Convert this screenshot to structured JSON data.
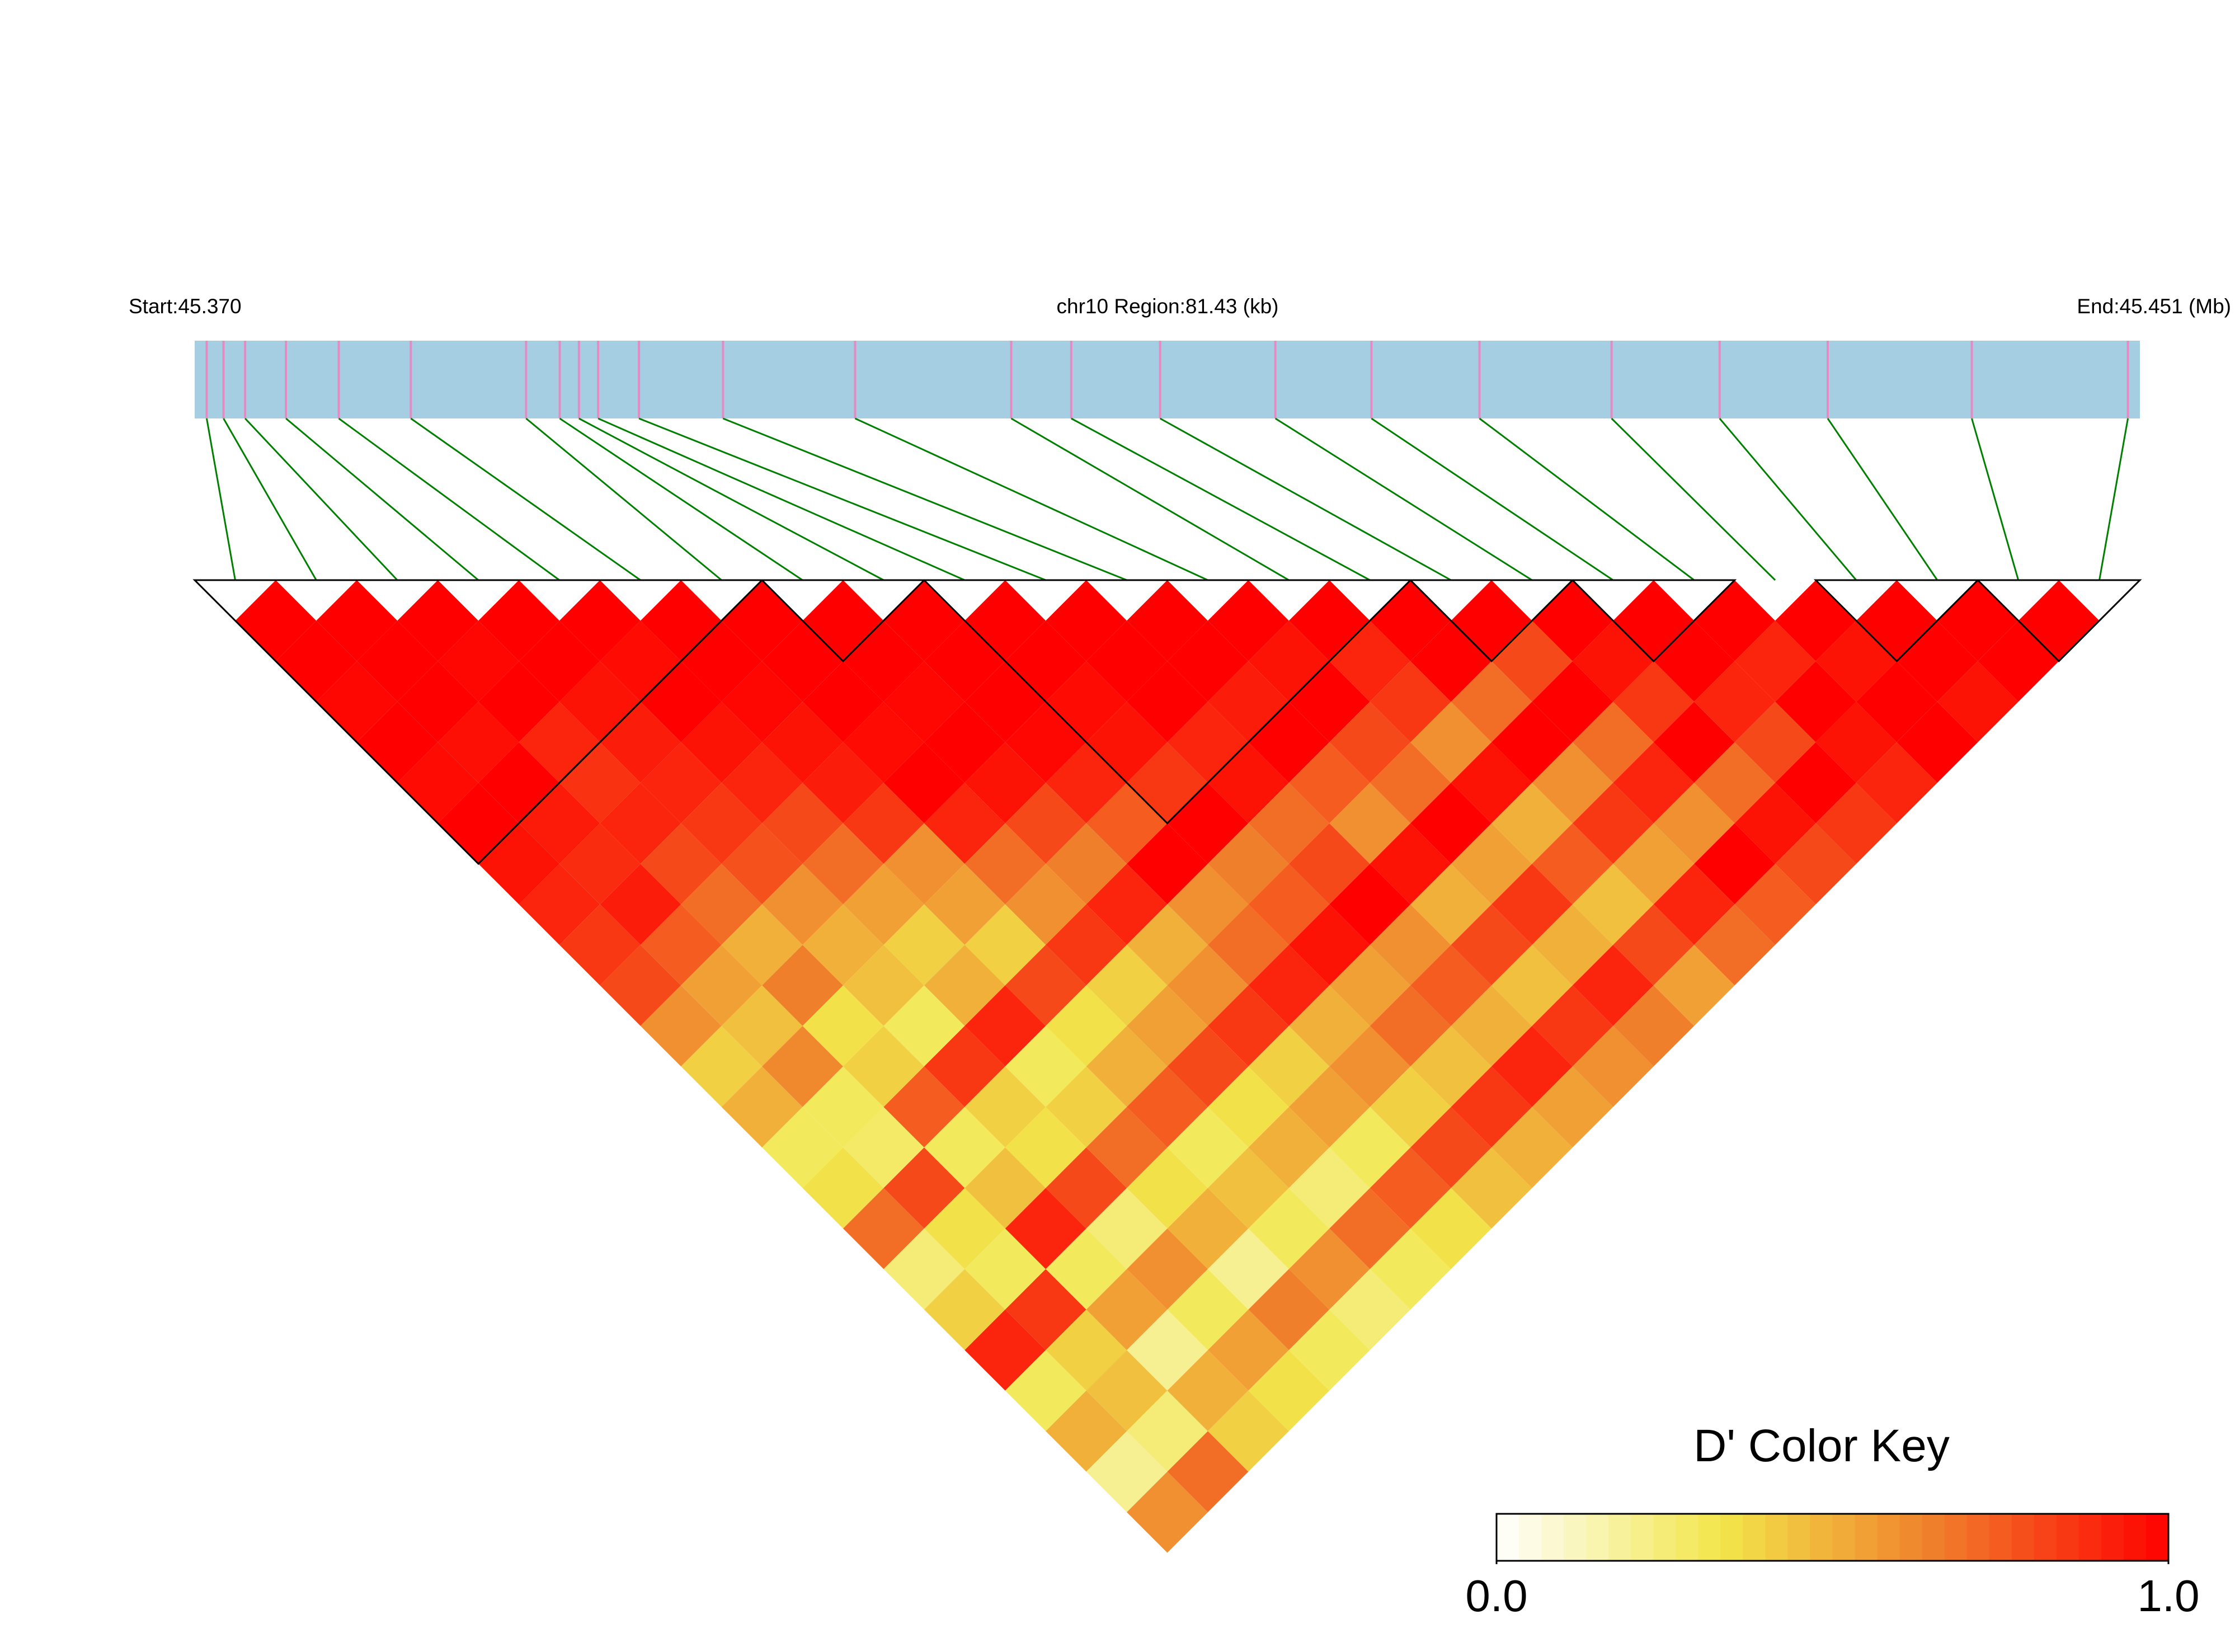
{
  "chart_data": {
    "type": "ld-heatmap",
    "chromosome_label": "chr10 Region:81.43 (kb)",
    "start_label": "Start:45.370",
    "end_label": "End:45.451 (Mb)",
    "xlim": [
      45.37,
      45.451
    ],
    "positions": [
      45.3705,
      45.3712,
      45.3721,
      45.3738,
      45.376,
      45.379,
      45.3838,
      45.3852,
      45.386,
      45.3868,
      45.3885,
      45.392,
      45.3975,
      45.404,
      45.4065,
      45.4102,
      45.415,
      45.419,
      45.4235,
      45.429,
      45.4335,
      45.438,
      45.444,
      45.4505
    ],
    "ld": [
      [
        1,
        1,
        0.98,
        1,
        0.97,
        1,
        0.95,
        0.9,
        0.85,
        0.8,
        0.6,
        0.4,
        0.5,
        0.3,
        0.35,
        0.7,
        0.25,
        0.4,
        0.9,
        0.3,
        0.5,
        0.2,
        0.6
      ],
      [
        1,
        1,
        1,
        0.96,
        1,
        0.93,
        0.88,
        0.92,
        0.75,
        0.55,
        0.45,
        0.62,
        0.3,
        0.28,
        0.8,
        0.35,
        0.3,
        0.85,
        0.4,
        0.45,
        0.25,
        0.7
      ],
      [
        1,
        0.98,
        1,
        0.9,
        0.86,
        0.9,
        0.8,
        0.7,
        0.5,
        0.65,
        0.35,
        0.4,
        0.75,
        0.3,
        0.45,
        0.9,
        0.3,
        0.55,
        0.2,
        0.5,
        0.4
      ],
      [
        1,
        1,
        0.95,
        0.92,
        0.9,
        0.85,
        0.78,
        0.6,
        0.5,
        0.45,
        0.3,
        0.85,
        0.4,
        0.35,
        0.8,
        0.25,
        0.6,
        0.3,
        0.55,
        0.35
      ],
      [
        1,
        0.97,
        1,
        0.95,
        0.9,
        0.8,
        0.7,
        0.55,
        0.4,
        0.5,
        0.9,
        0.3,
        0.4,
        0.7,
        0.35,
        0.5,
        0.2,
        0.65,
        0.3
      ],
      [
        1,
        1,
        0.98,
        0.95,
        0.92,
        0.85,
        0.6,
        0.55,
        0.4,
        0.8,
        0.35,
        0.5,
        0.75,
        0.3,
        0.45,
        0.3,
        0.6,
        0.25
      ],
      [
        1,
        1,
        1,
        0.97,
        1,
        0.9,
        0.7,
        0.6,
        0.85,
        0.4,
        0.55,
        0.8,
        0.35,
        0.5,
        0.25,
        0.7,
        0.3
      ],
      [
        1,
        1,
        0.98,
        1,
        0.95,
        0.8,
        0.65,
        0.9,
        0.5,
        0.6,
        0.85,
        0.4,
        0.55,
        0.3,
        0.75,
        0.35
      ],
      [
        1,
        1,
        1,
        0.98,
        0.9,
        0.75,
        1,
        0.6,
        0.7,
        0.9,
        0.5,
        0.6,
        0.4,
        0.8,
        0.45
      ],
      [
        1,
        1,
        0.97,
        0.95,
        0.85,
        1,
        0.65,
        0.75,
        0.95,
        0.55,
        0.7,
        0.45,
        0.85,
        0.5
      ],
      [
        1,
        1,
        1,
        0.9,
        0.95,
        0.7,
        0.8,
        1,
        0.6,
        0.75,
        0.5,
        0.9,
        0.55
      ],
      [
        1,
        1,
        0.92,
        1,
        0.75,
        0.6,
        0.95,
        0.5,
        0.8,
        0.45,
        0.85,
        0.6
      ],
      [
        1,
        0.95,
        1,
        0.8,
        0.7,
        1,
        0.55,
        0.85,
        0.5,
        0.9,
        0.65
      ],
      [
        1,
        0.9,
        0.85,
        0.6,
        0.95,
        0.5,
        0.75,
        0.45,
        0.8,
        0.55
      ],
      [
        1,
        1,
        0.7,
        1,
        0.6,
        0.85,
        0.55,
        0.9,
        0.7
      ],
      [
        1,
        0.8,
        1,
        0.7,
        0.9,
        0.6,
        1,
        0.75
      ],
      [
        1,
        0.95,
        0.85,
        1,
        0.7,
        0.95,
        0.8
      ],
      [
        1,
        1,
        0.9,
        0.8,
        1,
        0.85
      ],
      [
        1,
        0.9,
        1,
        0.95,
        0.9
      ],
      [
        1,
        0.95,
        1,
        1
      ],
      [
        1,
        1,
        0.95
      ],
      [
        1,
        1
      ],
      [
        1
      ]
    ],
    "blocks": [
      [
        0,
        6
      ],
      [
        7,
        8
      ],
      [
        9,
        14
      ],
      [
        15,
        16
      ],
      [
        17,
        18
      ],
      [
        20,
        21
      ],
      [
        22,
        23
      ]
    ],
    "bar_color": "#a6cee3",
    "snp_color": "#e78ac3",
    "link_color": "#008000",
    "colors": [
      "#ffffff",
      "#f2e64a",
      "#f07a2a",
      "#ff0000"
    ],
    "key_title": "D' Color Key",
    "key_ticks": [
      {
        "value": 0,
        "label": "0.0"
      },
      {
        "value": 1,
        "label": "1.0"
      }
    ]
  }
}
